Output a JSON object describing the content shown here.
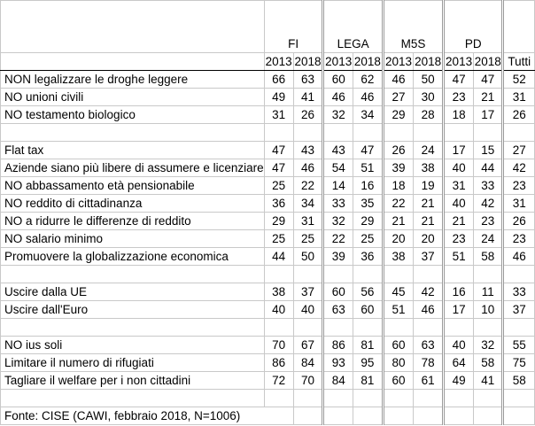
{
  "parties": [
    "FI",
    "LEGA",
    "M5S",
    "PD"
  ],
  "years": [
    "2013",
    "2018"
  ],
  "total_label": "Tutti",
  "groups": [
    [
      {
        "label": "NON legalizzare le droghe leggere",
        "values": [
          "66",
          "63",
          "60",
          "62",
          "46",
          "50",
          "47",
          "47",
          "52"
        ]
      },
      {
        "label": "NO unioni civili",
        "values": [
          "49",
          "41",
          "46",
          "46",
          "27",
          "30",
          "23",
          "21",
          "31"
        ]
      },
      {
        "label": "NO testamento biologico",
        "values": [
          "31",
          "26",
          "32",
          "34",
          "29",
          "28",
          "18",
          "17",
          "26"
        ]
      }
    ],
    [
      {
        "label": "Flat tax",
        "values": [
          "47",
          "43",
          "43",
          "47",
          "26",
          "24",
          "17",
          "15",
          "27"
        ]
      },
      {
        "label": "Aziende siano più libere di assumere e licenziare",
        "values": [
          "47",
          "46",
          "54",
          "51",
          "39",
          "38",
          "40",
          "44",
          "42"
        ]
      },
      {
        "label": "NO abbassamento età pensionabile",
        "values": [
          "25",
          "22",
          "14",
          "16",
          "18",
          "19",
          "31",
          "33",
          "23"
        ]
      },
      {
        "label": "NO reddito di cittadinanza",
        "values": [
          "36",
          "34",
          "33",
          "35",
          "22",
          "21",
          "40",
          "42",
          "31"
        ]
      },
      {
        "label": "NO a ridurre le differenze di reddito",
        "values": [
          "29",
          "31",
          "32",
          "29",
          "21",
          "21",
          "21",
          "23",
          "26"
        ]
      },
      {
        "label": "NO salario minimo",
        "values": [
          "25",
          "25",
          "22",
          "25",
          "20",
          "20",
          "23",
          "24",
          "23"
        ]
      },
      {
        "label": "Promuovere la globalizzazione economica",
        "values": [
          "44",
          "50",
          "39",
          "36",
          "38",
          "37",
          "51",
          "58",
          "46"
        ]
      }
    ],
    [
      {
        "label": "Uscire dalla UE",
        "values": [
          "38",
          "37",
          "60",
          "56",
          "45",
          "42",
          "16",
          "11",
          "33"
        ]
      },
      {
        "label": "Uscire dall'Euro",
        "values": [
          "40",
          "40",
          "63",
          "60",
          "51",
          "46",
          "17",
          "10",
          "37"
        ]
      }
    ],
    [
      {
        "label": "NO ius soli",
        "values": [
          "70",
          "67",
          "86",
          "81",
          "60",
          "63",
          "40",
          "32",
          "55"
        ]
      },
      {
        "label": "Limitare il numero di rifugiati",
        "values": [
          "86",
          "84",
          "93",
          "95",
          "80",
          "78",
          "64",
          "58",
          "75"
        ]
      },
      {
        "label": "Tagliare il welfare per i non cittadini",
        "values": [
          "72",
          "70",
          "84",
          "81",
          "60",
          "61",
          "49",
          "41",
          "58"
        ]
      }
    ]
  ],
  "source": "Fonte: CISE (CAWI, febbraio 2018, N=1006)"
}
